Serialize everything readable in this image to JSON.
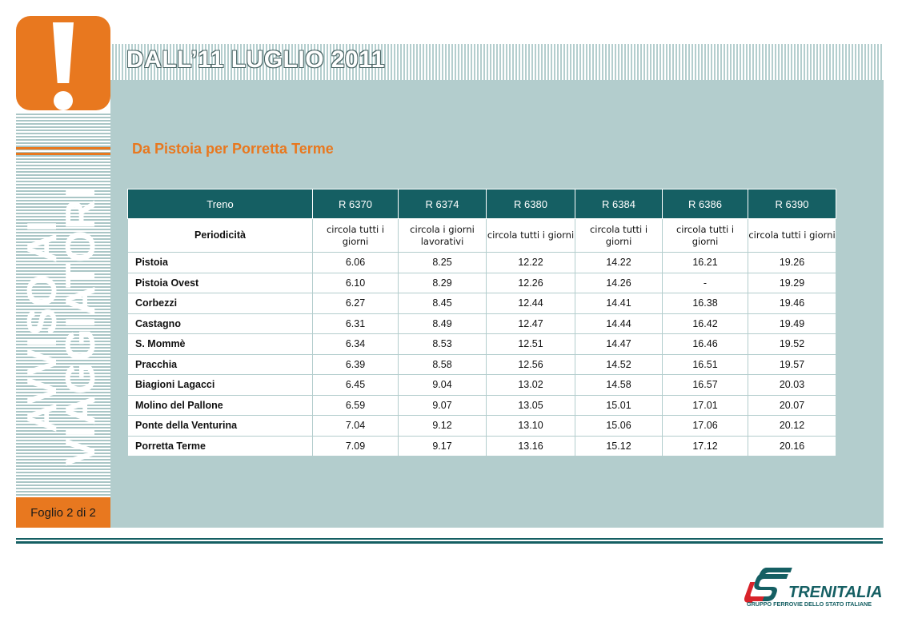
{
  "notice": {
    "side_title_line1": "AVVISO AI",
    "side_title_line2": "VIAGGIATORI",
    "sheet_label": "Foglio 2 di 2",
    "date_title": "DALL’11 LUGLIO 2011",
    "route_title": "Da Pistoia per Porretta Terme"
  },
  "timetable": {
    "corner_header": "Treno",
    "trains": [
      "R 6370",
      "R 6374",
      "R 6380",
      "R 6384",
      "R 6386",
      "R 6390"
    ],
    "periodicity_label": "Periodicità",
    "periodicity": [
      "circola tutti i giorni",
      "circola i giorni lavorativi",
      "circola tutti i giorni",
      "circola tutti i giorni",
      "circola tutti i giorni",
      "circola tutti i giorni"
    ],
    "stops": [
      {
        "name": "Pistoia",
        "times": [
          "6.06",
          "8.25",
          "12.22",
          "14.22",
          "16.21",
          "19.26"
        ]
      },
      {
        "name": "Pistoia Ovest",
        "times": [
          "6.10",
          "8.29",
          "12.26",
          "14.26",
          "-",
          "19.29"
        ]
      },
      {
        "name": "Corbezzi",
        "times": [
          "6.27",
          "8.45",
          "12.44",
          "14.41",
          "16.38",
          "19.46"
        ]
      },
      {
        "name": "Castagno",
        "times": [
          "6.31",
          "8.49",
          "12.47",
          "14.44",
          "16.42",
          "19.49"
        ]
      },
      {
        "name": "S. Mommè",
        "times": [
          "6.34",
          "8.53",
          "12.51",
          "14.47",
          "16.46",
          "19.52"
        ]
      },
      {
        "name": "Pracchia",
        "times": [
          "6.39",
          "8.58",
          "12.56",
          "14.52",
          "16.51",
          "19.57"
        ]
      },
      {
        "name": "Biagioni Lagacci",
        "times": [
          "6.45",
          "9.04",
          "13.02",
          "14.58",
          "16.57",
          "20.03"
        ]
      },
      {
        "name": "Molino del Pallone",
        "times": [
          "6.59",
          "9.07",
          "13.05",
          "15.01",
          "17.01",
          "20.07"
        ]
      },
      {
        "name": "Ponte della Venturina",
        "times": [
          "7.04",
          "9.12",
          "13.10",
          "15.06",
          "17.06",
          "20.12"
        ]
      },
      {
        "name": "Porretta Terme",
        "times": [
          "7.09",
          "9.17",
          "13.16",
          "15.12",
          "17.12",
          "20.16"
        ]
      }
    ]
  },
  "brand": {
    "name": "TRENITALIA",
    "subtitle": "GRUPPO FERROVIE DELLO STATO ITALIANE",
    "icon": "trenitalia-logo-icon"
  },
  "colors": {
    "accent_orange": "#e8781f",
    "header_teal": "#155f63",
    "panel_bg": "#b3cdcd"
  }
}
